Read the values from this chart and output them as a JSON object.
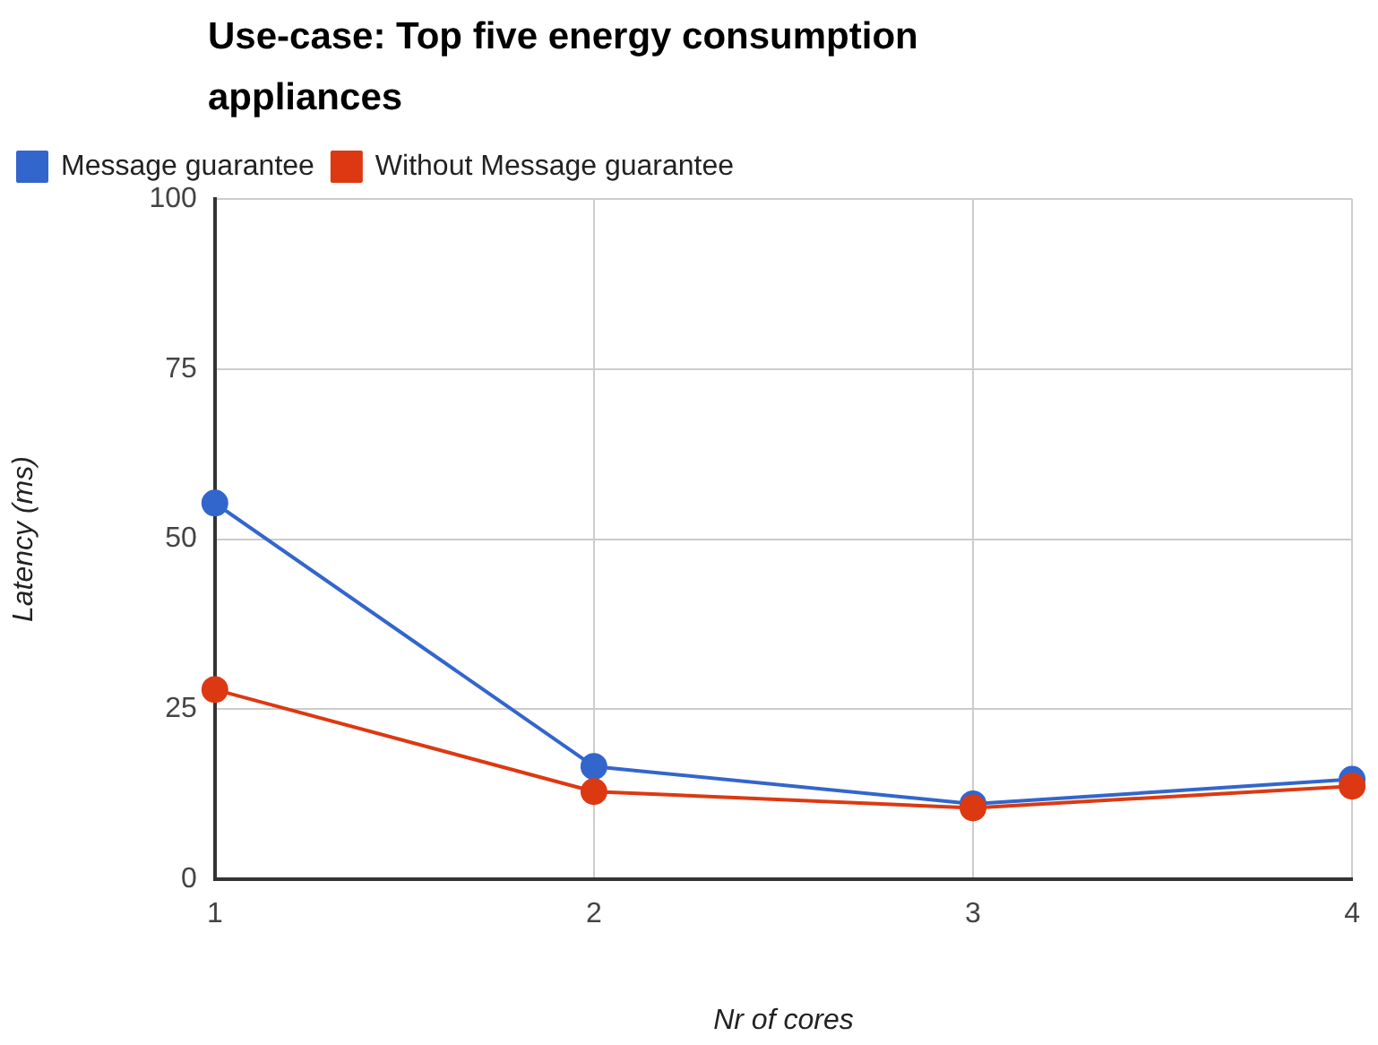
{
  "chart_data": {
    "type": "line",
    "title": "Use-case: Top five energy consumption appliances",
    "xlabel": "Nr of cores",
    "ylabel": "Latency (ms)",
    "x": [
      1,
      2,
      3,
      4
    ],
    "series": [
      {
        "name": "Message guarantee",
        "color": "#3366cc",
        "values": [
          55.3,
          16.6,
          11.1,
          14.7
        ]
      },
      {
        "name": "Without Message guarantee",
        "color": "#dc3912",
        "values": [
          27.9,
          12.9,
          10.5,
          13.7
        ]
      }
    ],
    "xlim": [
      1,
      4
    ],
    "xticks": [
      1,
      2,
      3,
      4
    ],
    "ylim": [
      0,
      100
    ],
    "yticks": [
      0,
      25,
      50,
      75,
      100
    ],
    "grid": true,
    "legend": "top left",
    "marker": "circle",
    "line_style": "solid"
  }
}
